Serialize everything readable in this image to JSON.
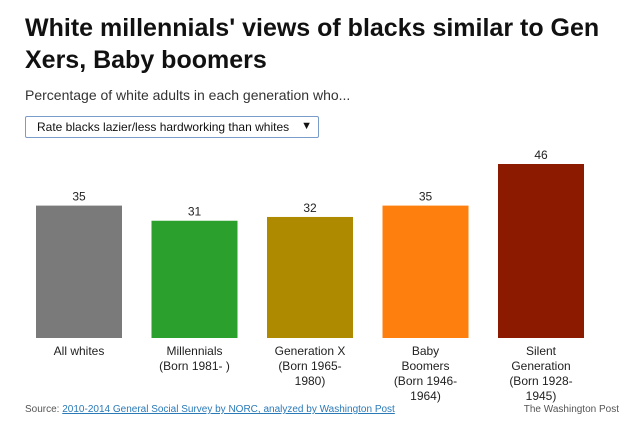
{
  "title": "White millennials' views of blacks similar to Gen Xers, Baby boomers",
  "subtitle": "Percentage of white adults in each generation who...",
  "dropdown": {
    "selected": "Rate blacks lazier/less hardworking than whites",
    "arrow_icon": "down-triangle-icon"
  },
  "chart_data": {
    "type": "bar",
    "categories": [
      [
        "All whites"
      ],
      [
        "Millennials",
        "(Born 1981- )"
      ],
      [
        "Generation X",
        "(Born 1965-",
        "1980)"
      ],
      [
        "Baby",
        "Boomers",
        "(Born 1946-",
        "1964)"
      ],
      [
        "Silent",
        "Generation",
        "(Born 1928-",
        "1945)"
      ]
    ],
    "values": [
      35,
      31,
      32,
      35,
      46
    ],
    "colors": [
      "#7a7a7a",
      "#2ca02c",
      "#ad8a00",
      "#ff7f0e",
      "#8b1a00"
    ],
    "ylim": [
      0,
      46
    ],
    "grid": false
  },
  "footer": {
    "source_prefix": "Source:",
    "source_link": "2010-2014 General Social Survey by NORC, analyzed by Washington Post",
    "brand": "The Washington Post"
  }
}
